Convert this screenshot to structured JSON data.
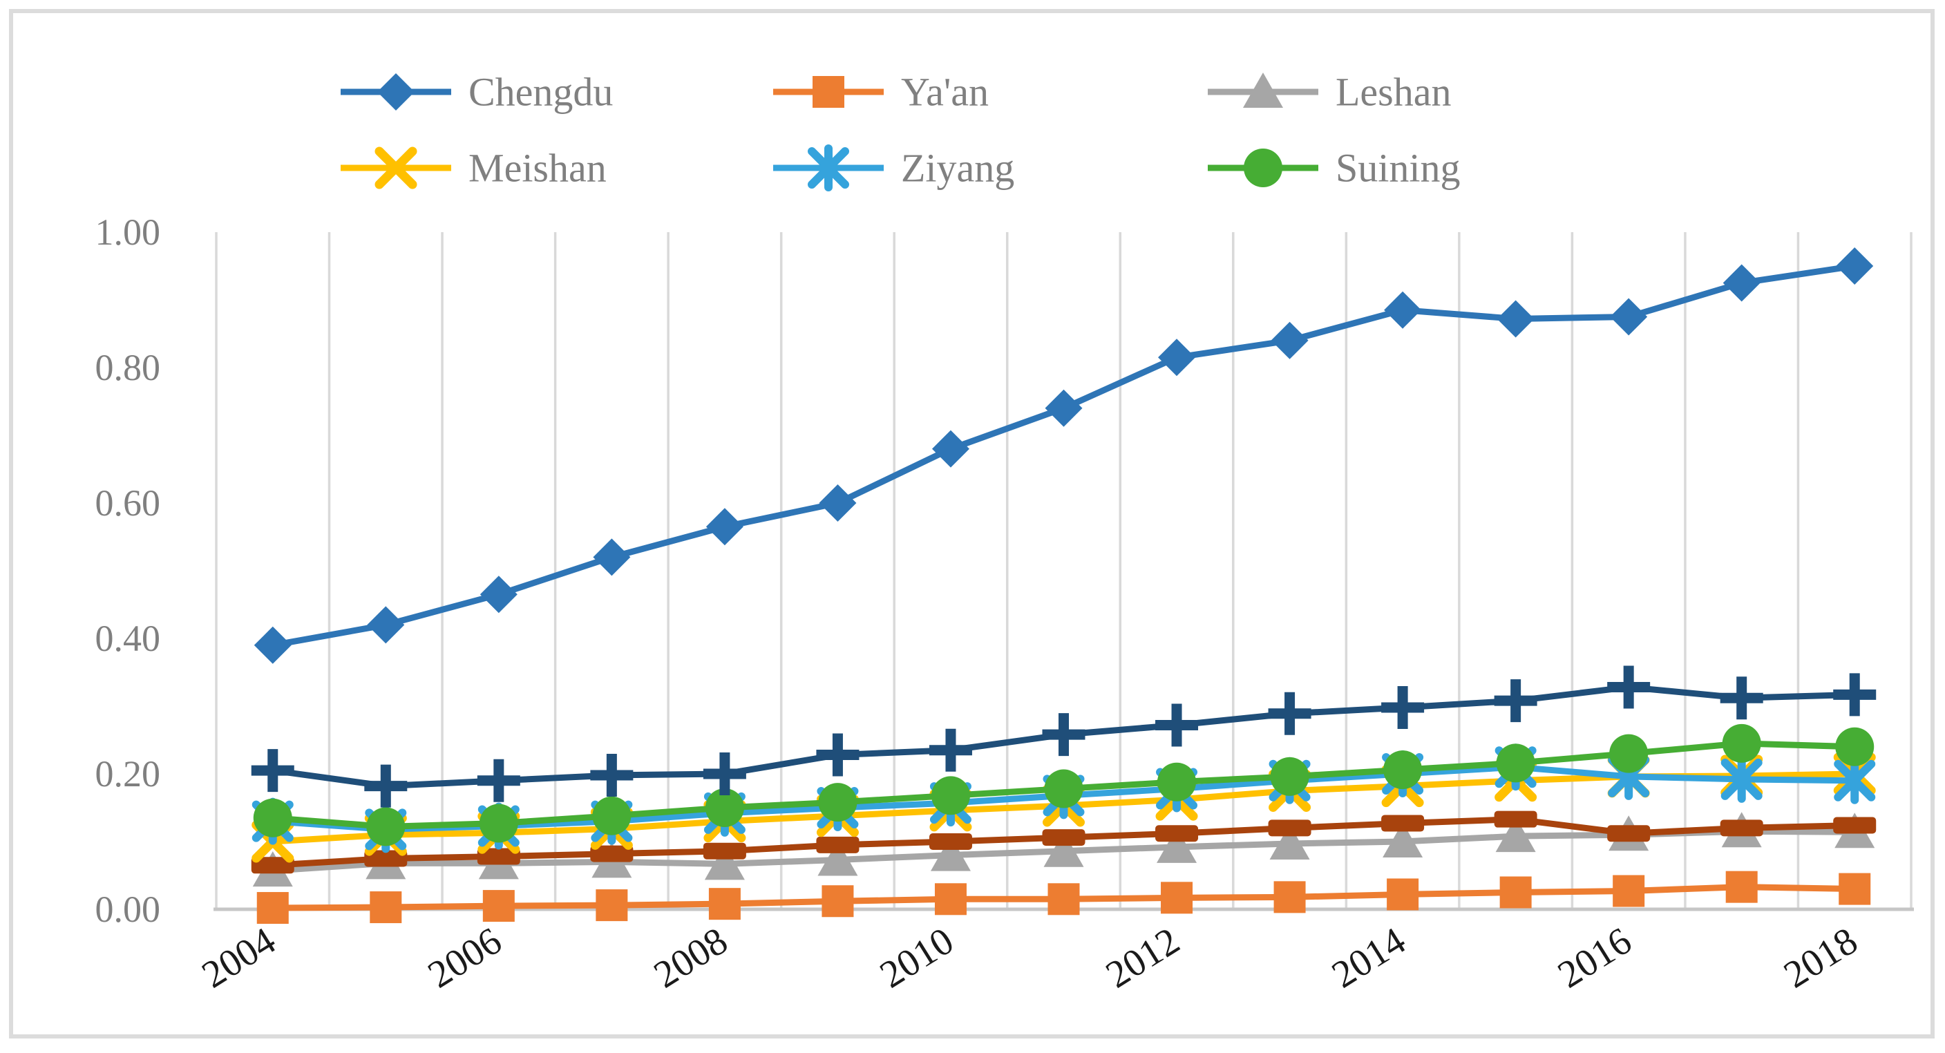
{
  "figure": {
    "background_color": "#ffffff",
    "frame_border_color": "#dcdcdc",
    "gridline_color": "#d9d9d9",
    "axis_line_color": "#c6c6c6",
    "y_tick_label_color": "#7f7f7f",
    "x_tick_label_color": "#1a1a1a",
    "legend_text_color": "#808080"
  },
  "chart_data": {
    "type": "line",
    "title": "",
    "xlabel": "",
    "ylabel": "",
    "x": [
      2004,
      2005,
      2006,
      2007,
      2008,
      2009,
      2010,
      2011,
      2012,
      2013,
      2014,
      2015,
      2016,
      2017,
      2018
    ],
    "x_tick_labels": [
      "2004",
      "2006",
      "2008",
      "2010",
      "2012",
      "2014",
      "2016",
      "2018"
    ],
    "x_label_every": 2,
    "x_label_rotation_deg": -32,
    "ylim": [
      0.0,
      1.0
    ],
    "y_ticks": [
      0.0,
      0.2,
      0.4,
      0.6,
      0.8,
      1.0
    ],
    "y_tick_labels": [
      "0.00",
      "0.20",
      "0.40",
      "0.60",
      "0.80",
      "1.00"
    ],
    "grid": "vertical-only",
    "legend_position": "top",
    "legend_rows": [
      [
        "chengdu",
        "yaan",
        "leshan"
      ],
      [
        "meishan",
        "ziyang",
        "suining"
      ]
    ],
    "series": [
      {
        "id": "chengdu",
        "name": "Chengdu",
        "marker": "diamond",
        "color": "#2E75B6",
        "in_legend": true,
        "values": [
          0.39,
          0.42,
          0.465,
          0.52,
          0.565,
          0.6,
          0.68,
          0.74,
          0.815,
          0.84,
          0.885,
          0.872,
          0.875,
          0.925,
          0.95
        ]
      },
      {
        "id": "yaan",
        "name": "Ya'an",
        "marker": "square",
        "color": "#ED7D31",
        "in_legend": true,
        "values": [
          0.002,
          0.003,
          0.005,
          0.006,
          0.008,
          0.012,
          0.015,
          0.015,
          0.017,
          0.018,
          0.022,
          0.025,
          0.027,
          0.033,
          0.03
        ]
      },
      {
        "id": "leshan",
        "name": "Leshan",
        "marker": "triangle",
        "color": "#A6A6A6",
        "in_legend": true,
        "values": [
          0.057,
          0.068,
          0.068,
          0.07,
          0.067,
          0.073,
          0.08,
          0.086,
          0.092,
          0.097,
          0.1,
          0.108,
          0.11,
          0.115,
          0.114
        ]
      },
      {
        "id": "meishan",
        "name": "Meishan",
        "marker": "x",
        "color": "#FFC000",
        "in_legend": true,
        "values": [
          0.1,
          0.11,
          0.113,
          0.119,
          0.13,
          0.138,
          0.146,
          0.153,
          0.162,
          0.175,
          0.182,
          0.19,
          0.196,
          0.197,
          0.2
        ]
      },
      {
        "id": "ziyang",
        "name": "Ziyang",
        "marker": "star6",
        "color": "#35A3DC",
        "in_legend": true,
        "values": [
          0.13,
          0.118,
          0.123,
          0.13,
          0.142,
          0.15,
          0.157,
          0.168,
          0.178,
          0.19,
          0.2,
          0.21,
          0.196,
          0.192,
          0.19
        ]
      },
      {
        "id": "suining",
        "name": "Suining",
        "marker": "circle",
        "color": "#46AD34",
        "in_legend": true,
        "values": [
          0.135,
          0.122,
          0.127,
          0.138,
          0.15,
          0.158,
          0.168,
          0.178,
          0.188,
          0.196,
          0.206,
          0.216,
          0.23,
          0.245,
          0.24
        ]
      },
      {
        "id": "series7-unlabeled",
        "name": "",
        "marker": "plus",
        "color": "#1F4E79",
        "in_legend": false,
        "values": [
          0.205,
          0.182,
          0.19,
          0.198,
          0.2,
          0.228,
          0.235,
          0.258,
          0.272,
          0.289,
          0.298,
          0.308,
          0.328,
          0.312,
          0.317
        ]
      },
      {
        "id": "series8-unlabeled",
        "name": "",
        "marker": "dash",
        "color": "#A8430D",
        "in_legend": false,
        "values": [
          0.065,
          0.075,
          0.078,
          0.082,
          0.086,
          0.095,
          0.1,
          0.106,
          0.112,
          0.12,
          0.127,
          0.133,
          0.112,
          0.12,
          0.124
        ]
      }
    ]
  }
}
